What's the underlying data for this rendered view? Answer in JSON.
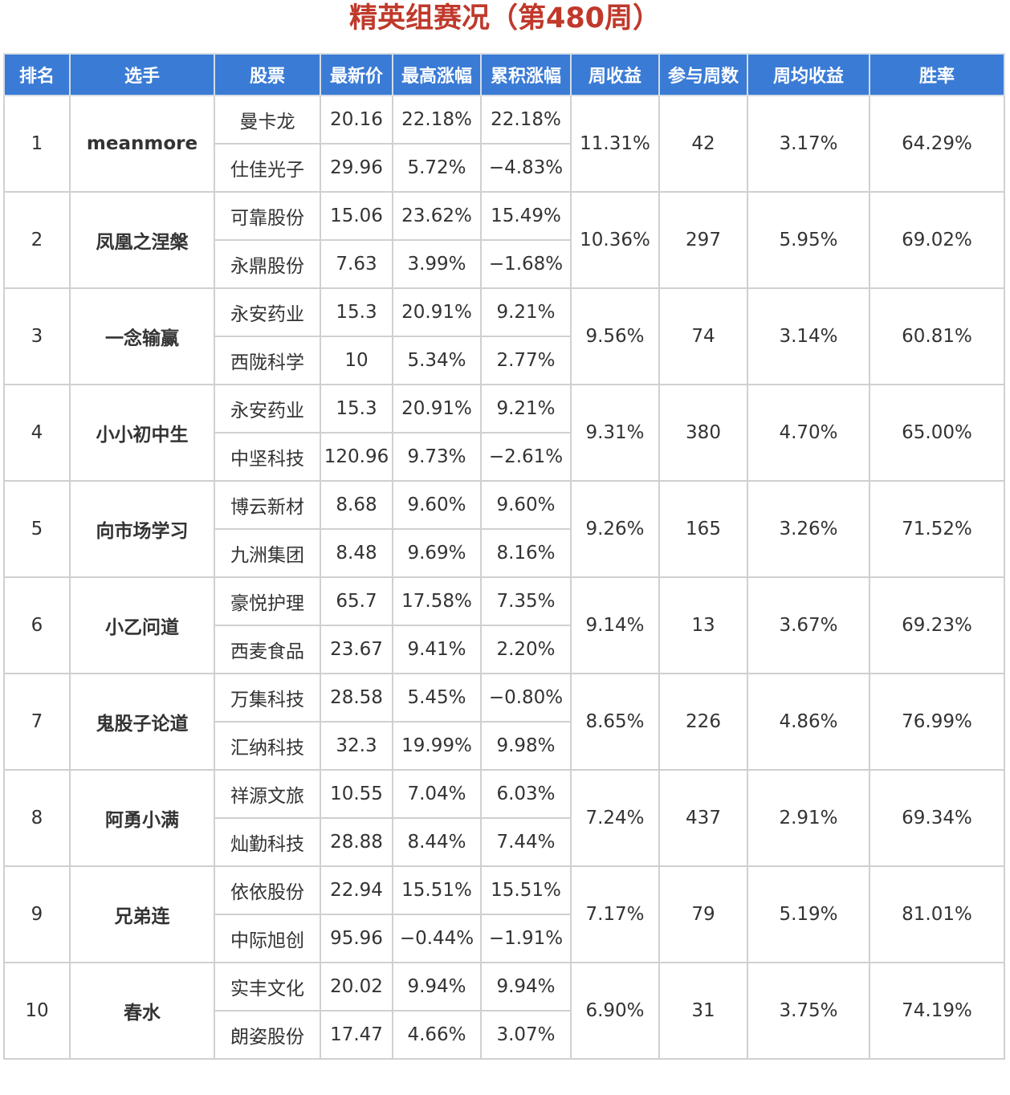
{
  "title": "精英组赛况（第480周）",
  "headers": [
    "排名",
    "选手",
    "股票",
    "最新价",
    "最高涨幅",
    "累积涨幅",
    "周收益",
    "参与周数",
    "周均收益",
    "胜率"
  ],
  "colors": {
    "header_bg": "#3a7bd5",
    "title": "#c0392b",
    "positive": "#d13b3b",
    "negative": "#3a8a35",
    "player": "#2563b0"
  },
  "rows": [
    {
      "rank": "1",
      "player": "meanmore",
      "weekly_return": "11.31%",
      "weeks": "42",
      "avg_return": "3.17%",
      "win_rate": "64.29%",
      "stocks": [
        {
          "name": "曼卡龙",
          "price": "20.16",
          "max_gain": "22.18%",
          "cum_gain": "22.18%"
        },
        {
          "name": "仕佳光子",
          "price": "29.96",
          "max_gain": "5.72%",
          "cum_gain": "−4.83%"
        }
      ]
    },
    {
      "rank": "2",
      "player": "凤凰之涅槃",
      "weekly_return": "10.36%",
      "weeks": "297",
      "avg_return": "5.95%",
      "win_rate": "69.02%",
      "stocks": [
        {
          "name": "可靠股份",
          "price": "15.06",
          "max_gain": "23.62%",
          "cum_gain": "15.49%"
        },
        {
          "name": "永鼎股份",
          "price": "7.63",
          "max_gain": "3.99%",
          "cum_gain": "−1.68%"
        }
      ]
    },
    {
      "rank": "3",
      "player": "一念输赢",
      "weekly_return": "9.56%",
      "weeks": "74",
      "avg_return": "3.14%",
      "win_rate": "60.81%",
      "stocks": [
        {
          "name": "永安药业",
          "price": "15.3",
          "max_gain": "20.91%",
          "cum_gain": "9.21%"
        },
        {
          "name": "西陇科学",
          "price": "10",
          "max_gain": "5.34%",
          "cum_gain": "2.77%"
        }
      ]
    },
    {
      "rank": "4",
      "player": "小小初中生",
      "weekly_return": "9.31%",
      "weeks": "380",
      "avg_return": "4.70%",
      "win_rate": "65.00%",
      "stocks": [
        {
          "name": "永安药业",
          "price": "15.3",
          "max_gain": "20.91%",
          "cum_gain": "9.21%"
        },
        {
          "name": "中坚科技",
          "price": "120.96",
          "max_gain": "9.73%",
          "cum_gain": "−2.61%"
        }
      ]
    },
    {
      "rank": "5",
      "player": "向市场学习",
      "weekly_return": "9.26%",
      "weeks": "165",
      "avg_return": "3.26%",
      "win_rate": "71.52%",
      "stocks": [
        {
          "name": "博云新材",
          "price": "8.68",
          "max_gain": "9.60%",
          "cum_gain": "9.60%"
        },
        {
          "name": "九洲集团",
          "price": "8.48",
          "max_gain": "9.69%",
          "cum_gain": "8.16%"
        }
      ]
    },
    {
      "rank": "6",
      "player": "小乙问道",
      "weekly_return": "9.14%",
      "weeks": "13",
      "avg_return": "3.67%",
      "win_rate": "69.23%",
      "stocks": [
        {
          "name": "豪悦护理",
          "price": "65.7",
          "max_gain": "17.58%",
          "cum_gain": "7.35%"
        },
        {
          "name": "西麦食品",
          "price": "23.67",
          "max_gain": "9.41%",
          "cum_gain": "2.20%"
        }
      ]
    },
    {
      "rank": "7",
      "player": "鬼股子论道",
      "weekly_return": "8.65%",
      "weeks": "226",
      "avg_return": "4.86%",
      "win_rate": "76.99%",
      "stocks": [
        {
          "name": "万集科技",
          "price": "28.58",
          "max_gain": "5.45%",
          "cum_gain": "−0.80%"
        },
        {
          "name": "汇纳科技",
          "price": "32.3",
          "max_gain": "19.99%",
          "cum_gain": "9.98%"
        }
      ]
    },
    {
      "rank": "8",
      "player": "阿勇小满",
      "weekly_return": "7.24%",
      "weeks": "437",
      "avg_return": "2.91%",
      "win_rate": "69.34%",
      "stocks": [
        {
          "name": "祥源文旅",
          "price": "10.55",
          "max_gain": "7.04%",
          "cum_gain": "6.03%"
        },
        {
          "name": "灿勤科技",
          "price": "28.88",
          "max_gain": "8.44%",
          "cum_gain": "7.44%"
        }
      ]
    },
    {
      "rank": "9",
      "player": "兄弟连",
      "weekly_return": "7.17%",
      "weeks": "79",
      "avg_return": "5.19%",
      "win_rate": "81.01%",
      "stocks": [
        {
          "name": "依依股份",
          "price": "22.94",
          "max_gain": "15.51%",
          "cum_gain": "15.51%"
        },
        {
          "name": "中际旭创",
          "price": "95.96",
          "max_gain": "−0.44%",
          "cum_gain": "−1.91%"
        }
      ]
    },
    {
      "rank": "10",
      "player": "春水",
      "weekly_return": "6.90%",
      "weeks": "31",
      "avg_return": "3.75%",
      "win_rate": "74.19%",
      "stocks": [
        {
          "name": "实丰文化",
          "price": "20.02",
          "max_gain": "9.94%",
          "cum_gain": "9.94%"
        },
        {
          "name": "朗姿股份",
          "price": "17.47",
          "max_gain": "4.66%",
          "cum_gain": "3.07%"
        }
      ]
    }
  ]
}
